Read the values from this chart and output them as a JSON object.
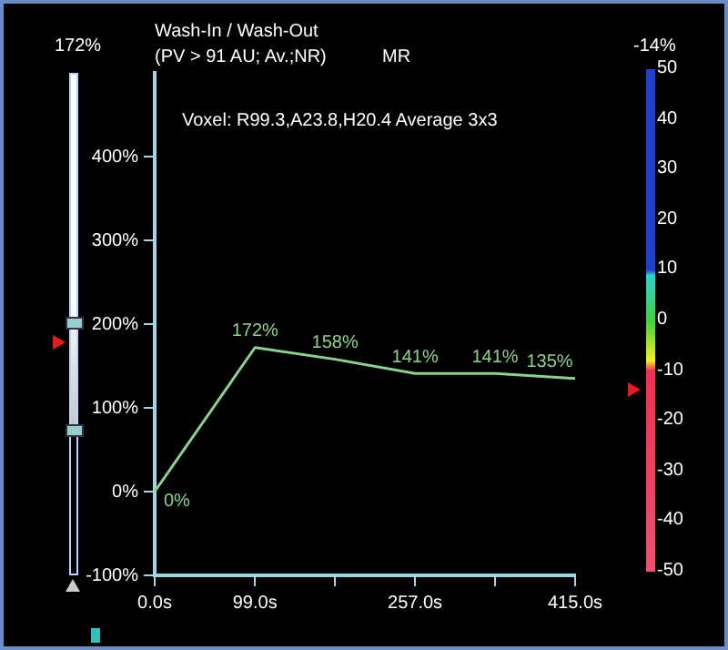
{
  "chart_data": {
    "type": "line",
    "title": "Wash-In / Wash-Out",
    "subtitle": "(PV > 91 AU; Av.;NR)",
    "annotations": [
      "Voxel: R99.3,A23.8,H20.4 Average 3x3",
      "MR",
      "172%",
      "-14%"
    ],
    "x": [
      0,
      99,
      178,
      257,
      336,
      415
    ],
    "series": [
      {
        "color": "#8fd08f",
        "values": [
          0,
          172,
          158,
          141,
          141,
          135
        ],
        "value_labels": [
          "0%",
          "172%",
          "158%",
          "141%",
          "141%",
          "135%"
        ]
      }
    ],
    "xlim": [
      0,
      415
    ],
    "xticks": [
      {
        "value": 0,
        "label": "0.0s"
      },
      {
        "value": 99,
        "label": "99.0s"
      },
      {
        "value": 178,
        "label": null
      },
      {
        "value": 257,
        "label": "257.0s"
      },
      {
        "value": 336,
        "label": null
      },
      {
        "value": 415,
        "label": "415.0s"
      }
    ],
    "ylim": [
      -100,
      500
    ],
    "yticks": [
      {
        "value": -100,
        "label": "-100%"
      },
      {
        "value": 0,
        "label": "0%"
      },
      {
        "value": 100,
        "label": "100%"
      },
      {
        "value": 200,
        "label": "200%"
      },
      {
        "value": 300,
        "label": "300%"
      },
      {
        "value": 400,
        "label": "400%"
      }
    ],
    "clim": [
      -50,
      50
    ],
    "cticks": [
      50,
      40,
      30,
      20,
      10,
      0,
      -10,
      -20,
      -30,
      -40,
      -50
    ],
    "grid": false,
    "legend": false,
    "marker": "none",
    "line_style": "solid"
  }
}
